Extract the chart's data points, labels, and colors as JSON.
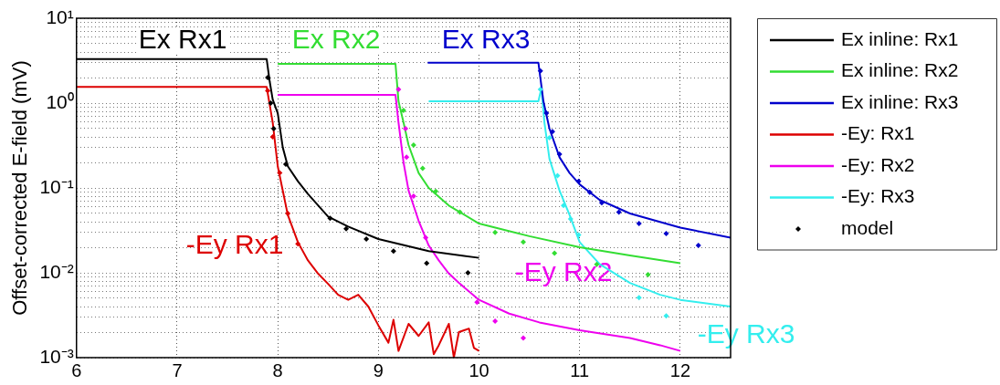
{
  "chart_data": {
    "type": "line",
    "ylabel": "Offset-corrected E-field (mV)",
    "log": "y",
    "grid": true,
    "legend": "top right",
    "marker": "none",
    "xlim": [
      6,
      12.5
    ],
    "xticks": [
      6,
      7,
      8,
      9,
      10,
      11,
      12
    ],
    "ylim": [
      0.001,
      10
    ],
    "yticks": [
      {
        "value": 0.001,
        "label": "10⁻³"
      },
      {
        "value": 0.002,
        "label": null
      },
      {
        "value": 0.003,
        "label": null
      },
      {
        "value": 0.004,
        "label": null
      },
      {
        "value": 0.005,
        "label": null
      },
      {
        "value": 0.006,
        "label": null
      },
      {
        "value": 0.007,
        "label": null
      },
      {
        "value": 0.008,
        "label": null
      },
      {
        "value": 0.009,
        "label": null
      },
      {
        "value": 0.01,
        "label": "10⁻²"
      },
      {
        "value": 0.02,
        "label": null
      },
      {
        "value": 0.03,
        "label": null
      },
      {
        "value": 0.04,
        "label": null
      },
      {
        "value": 0.05,
        "label": null
      },
      {
        "value": 0.06,
        "label": null
      },
      {
        "value": 0.07,
        "label": null
      },
      {
        "value": 0.08,
        "label": null
      },
      {
        "value": 0.09,
        "label": null
      },
      {
        "value": 0.1,
        "label": "10⁻¹"
      },
      {
        "value": 0.2,
        "label": null
      },
      {
        "value": 0.3,
        "label": null
      },
      {
        "value": 0.4,
        "label": null
      },
      {
        "value": 0.5,
        "label": null
      },
      {
        "value": 0.6,
        "label": null
      },
      {
        "value": 0.7,
        "label": null
      },
      {
        "value": 0.8,
        "label": null
      },
      {
        "value": 0.9,
        "label": null
      },
      {
        "value": 1,
        "label": "10⁰"
      },
      {
        "value": 2,
        "label": null
      },
      {
        "value": 3,
        "label": null
      },
      {
        "value": 4,
        "label": null
      },
      {
        "value": 5,
        "label": null
      },
      {
        "value": 6,
        "label": null
      },
      {
        "value": 7,
        "label": null
      },
      {
        "value": 8,
        "label": null
      },
      {
        "value": 9,
        "label": null
      },
      {
        "value": 10,
        "label": "10¹"
      }
    ],
    "series": [
      {
        "name": "Ex inline: Rx1",
        "color": "#000000",
        "x": [
          6,
          7.89,
          7.92,
          7.95,
          8.0,
          8.05,
          8.1,
          8.2,
          8.3,
          8.5,
          8.7,
          9.0,
          9.5,
          10.0
        ],
        "values": [
          3.3,
          3.3,
          1.8,
          1.1,
          0.76,
          0.3,
          0.18,
          0.12,
          0.085,
          0.046,
          0.035,
          0.025,
          0.018,
          0.015
        ]
      },
      {
        "name": "Ex inline: Rx2",
        "color": "#33dd33",
        "x": [
          8.0,
          9.17,
          9.2,
          9.25,
          9.3,
          9.4,
          9.5,
          9.7,
          10.0,
          10.5,
          11.0,
          11.5,
          12.0
        ],
        "values": [
          2.9,
          2.9,
          1.05,
          0.59,
          0.32,
          0.15,
          0.1,
          0.062,
          0.038,
          0.027,
          0.02,
          0.016,
          0.013
        ]
      },
      {
        "name": "Ex inline: Rx3",
        "color": "#0000cc",
        "x": [
          9.49,
          10.59,
          10.64,
          10.7,
          10.8,
          10.9,
          11.0,
          11.2,
          11.5,
          12.0,
          12.5
        ],
        "values": [
          3.0,
          3.0,
          1.05,
          0.5,
          0.23,
          0.15,
          0.11,
          0.072,
          0.05,
          0.034,
          0.026
        ]
      },
      {
        "name": "-Ey: Rx1",
        "color": "#dd0000",
        "x": [
          6,
          7.89,
          7.95,
          8.0,
          8.05,
          8.1,
          8.2,
          8.3,
          8.4,
          8.5,
          8.6,
          8.7,
          8.8,
          8.9,
          9.0,
          9.1,
          9.15,
          9.2,
          9.3,
          9.4,
          9.5,
          9.55,
          9.6,
          9.7,
          9.75,
          9.8,
          9.9,
          9.95,
          10.0
        ],
        "values": [
          1.55,
          1.55,
          0.59,
          0.18,
          0.093,
          0.048,
          0.023,
          0.014,
          0.0098,
          0.0074,
          0.0055,
          0.0048,
          0.0055,
          0.004,
          0.0024,
          0.0015,
          0.0028,
          0.0012,
          0.0025,
          0.0018,
          0.0026,
          0.0011,
          0.0014,
          0.0025,
          0.001,
          0.002,
          0.0022,
          0.0013,
          0.0012
        ]
      },
      {
        "name": "-Ey: Rx2",
        "color": "#ee00ee",
        "x": [
          8.0,
          9.17,
          9.2,
          9.25,
          9.3,
          9.4,
          9.5,
          9.6,
          9.7,
          9.8,
          10.0,
          10.3,
          10.6,
          11.0,
          11.5,
          11.8,
          12.0
        ],
        "values": [
          1.25,
          1.25,
          0.59,
          0.2,
          0.093,
          0.041,
          0.021,
          0.014,
          0.0098,
          0.0076,
          0.0048,
          0.0033,
          0.0026,
          0.0021,
          0.0017,
          0.0014,
          0.0012
        ]
      },
      {
        "name": "-Ey: Rx3",
        "color": "#33eeee",
        "x": [
          9.5,
          10.59,
          10.62,
          10.65,
          10.7,
          10.8,
          10.9,
          11.0,
          11.2,
          11.5,
          11.8,
          12.0,
          12.5
        ],
        "values": [
          1.05,
          1.05,
          1.5,
          0.59,
          0.22,
          0.093,
          0.048,
          0.023,
          0.0126,
          0.0076,
          0.0055,
          0.0048,
          0.004
        ]
      },
      {
        "name": "model",
        "type": "scatter",
        "marker": "diamond",
        "color": "#000000",
        "x": [
          7.9,
          7.93,
          7.96,
          8.08,
          8.52,
          8.68,
          8.88,
          9.15,
          9.48,
          9.89,
          7.9,
          7.95,
          8.02,
          8.1,
          8.2,
          9.25,
          9.35,
          9.44,
          9.57,
          9.81,
          10.16,
          10.44,
          10.75,
          11.17,
          11.68,
          9.2,
          9.27,
          9.28,
          9.35,
          9.47,
          9.98,
          10.16,
          10.44,
          10.61,
          10.67,
          10.73,
          10.8,
          10.99,
          11.1,
          11.22,
          11.39,
          11.59,
          11.86,
          12.18,
          10.61,
          10.7,
          10.78,
          10.84,
          10.91,
          10.99,
          11.59,
          11.86
        ],
        "values": [
          2.0,
          1.0,
          0.5,
          0.19,
          0.044,
          0.033,
          0.025,
          0.018,
          0.013,
          0.01,
          1.4,
          0.4,
          0.15,
          0.05,
          0.022,
          0.82,
          0.32,
          0.17,
          0.091,
          0.052,
          0.03,
          0.023,
          0.017,
          0.0126,
          0.0095,
          1.45,
          0.5,
          0.23,
          0.08,
          0.026,
          0.0045,
          0.0027,
          0.0017,
          2.4,
          0.76,
          0.46,
          0.25,
          0.12,
          0.089,
          0.067,
          0.052,
          0.038,
          0.029,
          0.021,
          1.45,
          0.39,
          0.14,
          0.062,
          0.043,
          0.028,
          0.0051,
          0.0031
        ],
        "colors": [
          "#000000",
          "#000000",
          "#000000",
          "#000000",
          "#000000",
          "#000000",
          "#000000",
          "#000000",
          "#000000",
          "#000000",
          "#dd0000",
          "#dd0000",
          "#dd0000",
          "#dd0000",
          "#dd0000",
          "#33dd33",
          "#33dd33",
          "#33dd33",
          "#33dd33",
          "#33dd33",
          "#33dd33",
          "#33dd33",
          "#33dd33",
          "#33dd33",
          "#33dd33",
          "#ee00ee",
          "#ee00ee",
          "#ee00ee",
          "#ee00ee",
          "#ee00ee",
          "#ee00ee",
          "#ee00ee",
          "#ee00ee",
          "#0000cc",
          "#0000cc",
          "#0000cc",
          "#0000cc",
          "#0000cc",
          "#0000cc",
          "#0000cc",
          "#0000cc",
          "#0000cc",
          "#0000cc",
          "#0000cc",
          "#33eeee",
          "#33eeee",
          "#33eeee",
          "#33eeee",
          "#33eeee",
          "#33eeee",
          "#33eeee",
          "#33eeee"
        ]
      }
    ],
    "annotations": [
      "Ex Rx1",
      "Ex Rx2",
      "Ex Rx3",
      "-Ey Rx1",
      "-Ey Rx2",
      "-Ey Rx3"
    ]
  }
}
